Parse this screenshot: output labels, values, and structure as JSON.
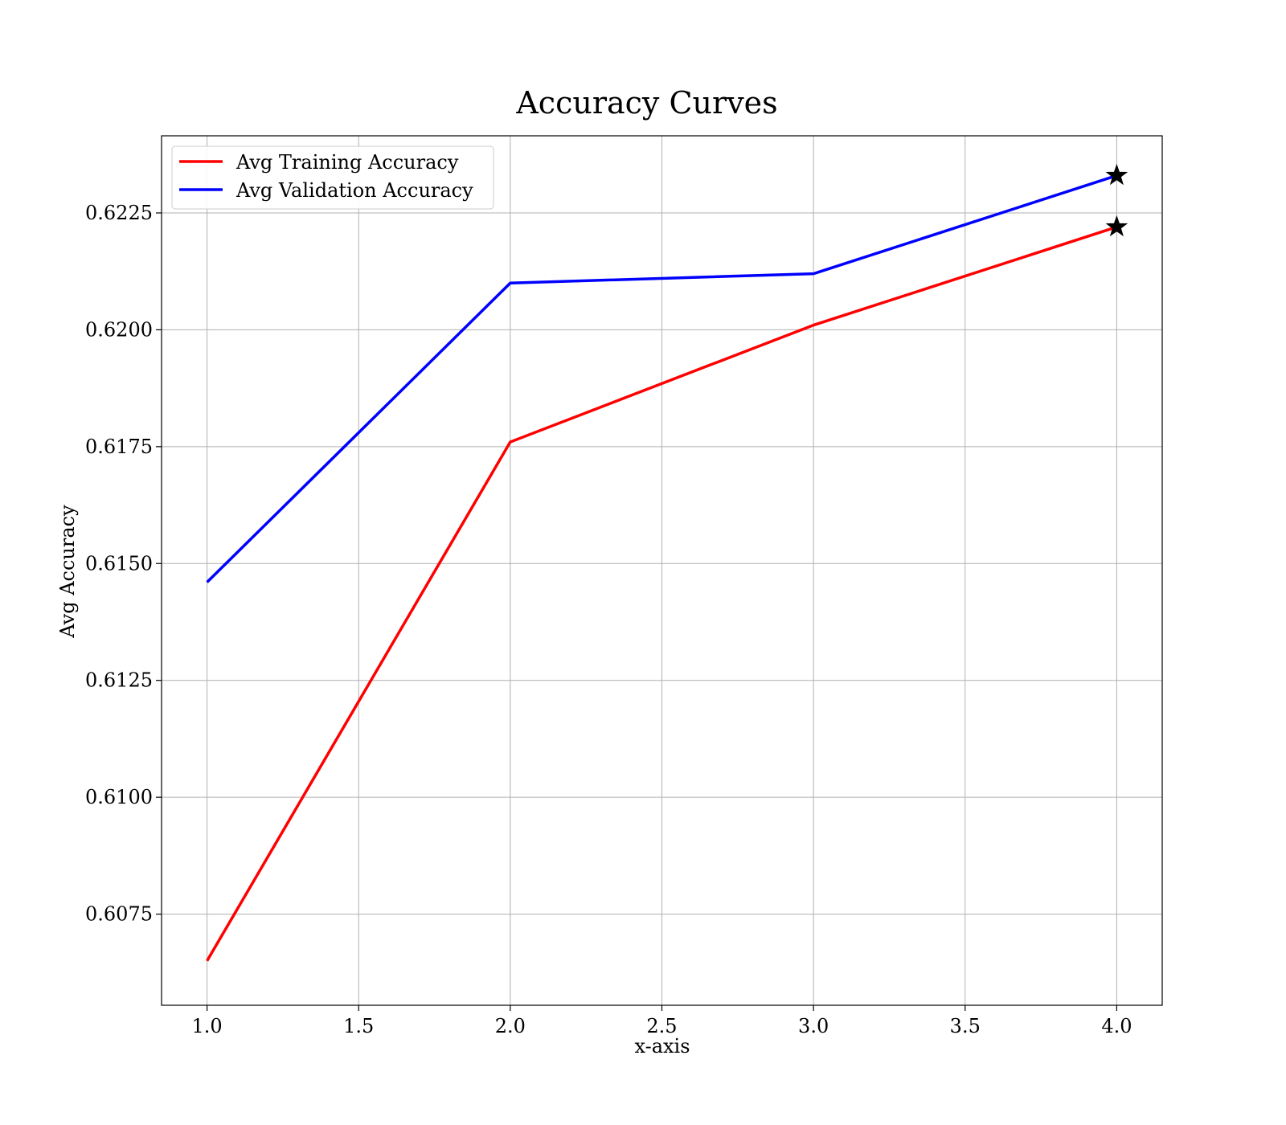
{
  "chart_data": {
    "type": "line",
    "title": "Accuracy Curves",
    "xlabel": "x-axis",
    "ylabel": "Avg Accuracy",
    "x": [
      1.0,
      2.0,
      3.0,
      4.0
    ],
    "xlim": [
      0.85,
      4.15
    ],
    "ylim": [
      0.60555,
      0.62415
    ],
    "xticks": [
      1.0,
      1.5,
      2.0,
      2.5,
      3.0,
      3.5,
      4.0
    ],
    "xtick_labels": [
      "1.0",
      "1.5",
      "2.0",
      "2.5",
      "3.0",
      "3.5",
      "4.0"
    ],
    "yticks": [
      0.6075,
      0.61,
      0.6125,
      0.615,
      0.6175,
      0.62,
      0.6225
    ],
    "ytick_labels": [
      "0.6075",
      "0.6100",
      "0.6125",
      "0.6150",
      "0.6175",
      "0.6200",
      "0.6225"
    ],
    "grid": true,
    "legend_position": "top-left",
    "series": [
      {
        "name": "Avg Training Accuracy",
        "color": "#ff0000",
        "values": [
          0.6065,
          0.6176,
          0.6201,
          0.6222
        ],
        "end_marker": "star"
      },
      {
        "name": "Avg Validation Accuracy",
        "color": "#0000ff",
        "values": [
          0.6146,
          0.621,
          0.6212,
          0.6233
        ],
        "end_marker": "star"
      }
    ],
    "marker_color": "#000000"
  }
}
